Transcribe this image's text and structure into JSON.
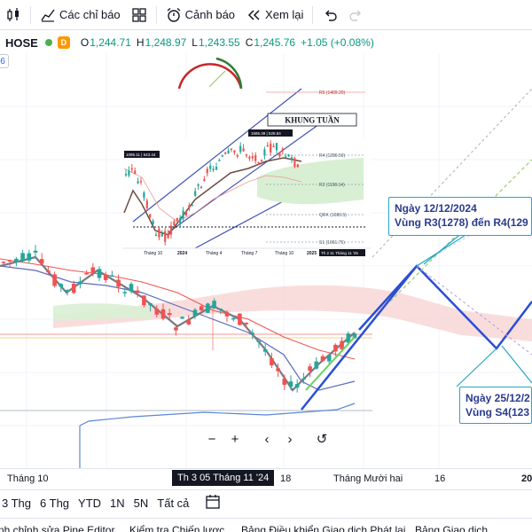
{
  "toolbar": {
    "indicators_label": "Các chỉ báo",
    "alerts_label": "Cảnh báo",
    "replay_label": "Xem lại"
  },
  "legend": {
    "symbol": "HOSE",
    "badge": "D",
    "open_label": "O",
    "open": "1,244.71",
    "high_label": "H",
    "high": "1,248.97",
    "low_label": "L",
    "low": "1,243.55",
    "close_label": "C",
    "close": "1,245.76",
    "change": "+1.05 (+0.08%)",
    "left_tag": "6"
  },
  "inset": {
    "title": "KHUNG TUẦN",
    "r5": "R5 (1409.20)",
    "r4": "R4 (1286.59)",
    "r3": "R3 (1198.14)",
    "s0": "QRK (1080.5)",
    "s1": "S1 (1061.75)",
    "hi": "1586.39 | 528.84",
    "lo": "1095.11 | 543.44",
    "axis": [
      "Tháng 10",
      "2024",
      "Tháng 4",
      "Tháng 7",
      "Tháng 10",
      "2025"
    ],
    "cursor": "Th 2 11 Tháng 11 '25"
  },
  "notes": {
    "top_line1": "Ngày 12/12/2024",
    "top_line2": "Vùng R3(1278) đến R4(129",
    "bottom_line1": "Ngày 25/12/2",
    "bottom_line2": "Vùng S4(123"
  },
  "zoom": {
    "minus": "−",
    "plus": "+",
    "left": "‹",
    "right": "›",
    "reset": "↺"
  },
  "time_axis": {
    "labels": [
      "Tháng 10",
      "18",
      "Tháng Mười hai",
      "16",
      "20"
    ],
    "cursor": "Th 3 05 Tháng 11 '24"
  },
  "range_bar": [
    "3 Thg",
    "6 Thg",
    "YTD",
    "1N",
    "5N",
    "Tất cả"
  ],
  "bottom_tabs": [
    "nh chỉnh sửa Pine Editor",
    "Kiểm tra Chiến lược",
    "Bảng Điều khiển Giao dịch Phát lại",
    "Bảng Giao dịch"
  ],
  "colors": {
    "up": "#26a69a",
    "down": "#ef5350",
    "accent": "#2962ff",
    "note_border": "#26a6c5",
    "cloud": "#f8d7d7"
  }
}
